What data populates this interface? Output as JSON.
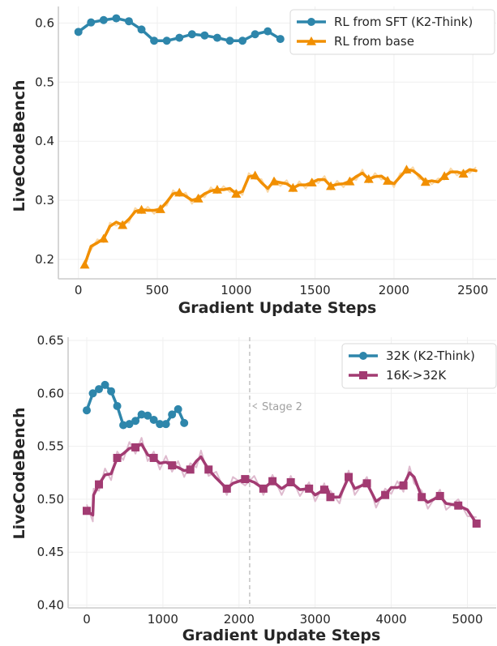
{
  "chart_data": [
    {
      "type": "line",
      "title": "",
      "xlabel": "Gradient Update Steps",
      "ylabel": "LiveCodeBench",
      "xlim": [
        -120,
        2650
      ],
      "ylim": [
        0.17,
        0.63
      ],
      "xticks": [
        0,
        500,
        1000,
        1500,
        2000,
        2500
      ],
      "xtick_labels": [
        "0",
        "500",
        "1000",
        "1500",
        "2000",
        "2500"
      ],
      "yticks": [
        0.2,
        0.3,
        0.4,
        0.5,
        0.6
      ],
      "ytick_labels": [
        "0.2",
        "0.3",
        "0.4",
        "0.5",
        "0.6"
      ],
      "grid": true,
      "legend_position": "top-right",
      "series": [
        {
          "name": "RL from SFT (K2-Think)",
          "color": "#2e86ab",
          "marker": "circle",
          "x": [
            0,
            80,
            160,
            240,
            320,
            400,
            480,
            560,
            640,
            720,
            800,
            880,
            960,
            1040,
            1120,
            1200,
            1280
          ],
          "y": [
            0.585,
            0.601,
            0.605,
            0.608,
            0.603,
            0.589,
            0.57,
            0.57,
            0.575,
            0.581,
            0.579,
            0.575,
            0.57,
            0.57,
            0.581,
            0.586,
            0.573
          ],
          "markers_x": [
            0,
            80,
            160,
            240,
            320,
            400,
            480,
            560,
            640,
            720,
            800,
            880,
            960,
            1040,
            1120,
            1200,
            1280
          ]
        },
        {
          "name": "RL from base",
          "color": "#f18f01",
          "marker": "triangle",
          "x": [
            40,
            80,
            120,
            160,
            200,
            240,
            280,
            320,
            360,
            400,
            440,
            480,
            520,
            560,
            600,
            640,
            680,
            720,
            760,
            800,
            840,
            880,
            920,
            960,
            1000,
            1040,
            1080,
            1120,
            1160,
            1200,
            1240,
            1280,
            1320,
            1360,
            1400,
            1440,
            1480,
            1520,
            1560,
            1600,
            1640,
            1680,
            1720,
            1760,
            1800,
            1840,
            1880,
            1920,
            1960,
            2000,
            2040,
            2080,
            2120,
            2160,
            2200,
            2240,
            2280,
            2320,
            2360,
            2400,
            2440,
            2480,
            2520
          ],
          "y": [
            0.191,
            0.222,
            0.228,
            0.235,
            0.256,
            0.263,
            0.258,
            0.268,
            0.281,
            0.284,
            0.283,
            0.283,
            0.285,
            0.297,
            0.311,
            0.313,
            0.307,
            0.3,
            0.303,
            0.311,
            0.316,
            0.318,
            0.318,
            0.32,
            0.311,
            0.315,
            0.34,
            0.342,
            0.33,
            0.32,
            0.332,
            0.33,
            0.328,
            0.321,
            0.326,
            0.326,
            0.33,
            0.335,
            0.335,
            0.324,
            0.327,
            0.328,
            0.332,
            0.34,
            0.346,
            0.336,
            0.34,
            0.341,
            0.333,
            0.328,
            0.34,
            0.352,
            0.35,
            0.342,
            0.331,
            0.333,
            0.331,
            0.341,
            0.348,
            0.348,
            0.345,
            0.352,
            0.35
          ],
          "markers_x": [
            40,
            160,
            280,
            400,
            520,
            640,
            760,
            880,
            1000,
            1120,
            1240,
            1360,
            1480,
            1600,
            1720,
            1840,
            1960,
            2080,
            2200,
            2320,
            2440
          ]
        }
      ]
    },
    {
      "type": "line",
      "title": "",
      "xlabel": "Gradient Update Steps",
      "ylabel": "LiveCodeBench",
      "xlim": [
        -250,
        5400
      ],
      "ylim": [
        0.4,
        0.65
      ],
      "xticks": [
        0,
        1000,
        2000,
        3000,
        4000,
        5000
      ],
      "xtick_labels": [
        "0",
        "1000",
        "2000",
        "3000",
        "4000",
        "5000"
      ],
      "yticks": [
        0.4,
        0.45,
        0.5,
        0.55,
        0.6,
        0.65
      ],
      "ytick_labels": [
        "0.40",
        "0.45",
        "0.50",
        "0.55",
        "0.60",
        "0.65"
      ],
      "grid": true,
      "legend_position": "top-right",
      "annotations": [
        {
          "text": "Stage 2",
          "x": 2140,
          "y": 0.588,
          "vline_x": 2140
        }
      ],
      "series": [
        {
          "name": "32K (K2-Think)",
          "color": "#2e86ab",
          "marker": "circle",
          "x": [
            0,
            80,
            160,
            240,
            320,
            400,
            480,
            560,
            640,
            720,
            800,
            880,
            960,
            1040,
            1120,
            1200,
            1280
          ],
          "y": [
            0.584,
            0.6,
            0.604,
            0.608,
            0.602,
            0.588,
            0.57,
            0.571,
            0.574,
            0.58,
            0.579,
            0.575,
            0.571,
            0.571,
            0.58,
            0.585,
            0.572
          ],
          "markers_x": [
            0,
            80,
            160,
            240,
            320,
            400,
            480,
            560,
            640,
            720,
            800,
            880,
            960,
            1040,
            1120,
            1200,
            1280
          ]
        },
        {
          "name": "16K->32K",
          "color": "#a23b72",
          "marker": "square",
          "x": [
            0,
            80,
            90,
            160,
            240,
            320,
            400,
            480,
            560,
            640,
            720,
            800,
            880,
            960,
            1040,
            1120,
            1200,
            1280,
            1360,
            1440,
            1500,
            1600,
            1700,
            1840,
            1920,
            2080,
            2200,
            2320,
            2440,
            2560,
            2680,
            2800,
            2920,
            3000,
            3120,
            3160,
            3200,
            3320,
            3440,
            3520,
            3680,
            3800,
            3920,
            4000,
            4080,
            4160,
            4240,
            4300,
            4400,
            4480,
            4640,
            4720,
            4880,
            5000,
            5120
          ],
          "y": [
            0.489,
            0.485,
            0.504,
            0.514,
            0.523,
            0.524,
            0.539,
            0.543,
            0.548,
            0.549,
            0.552,
            0.542,
            0.539,
            0.534,
            0.535,
            0.532,
            0.53,
            0.527,
            0.528,
            0.536,
            0.54,
            0.528,
            0.52,
            0.51,
            0.515,
            0.519,
            0.516,
            0.51,
            0.517,
            0.51,
            0.516,
            0.509,
            0.51,
            0.504,
            0.509,
            0.51,
            0.502,
            0.502,
            0.521,
            0.51,
            0.515,
            0.498,
            0.504,
            0.511,
            0.511,
            0.513,
            0.525,
            0.521,
            0.502,
            0.497,
            0.503,
            0.496,
            0.494,
            0.49,
            0.477
          ],
          "markers_x": [
            0,
            160,
            400,
            640,
            880,
            1120,
            1360,
            1600,
            1840,
            2080,
            2320,
            2440,
            2680,
            2920,
            3120,
            3200,
            3440,
            3680,
            3920,
            4160,
            4400,
            4640,
            4880,
            5120
          ]
        }
      ]
    }
  ]
}
